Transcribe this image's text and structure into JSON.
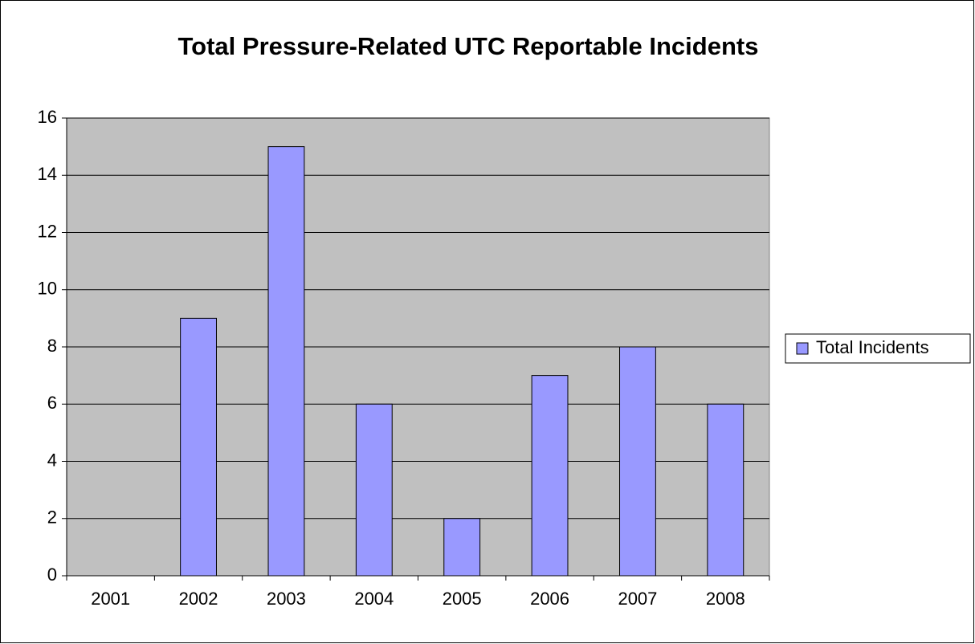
{
  "chart_data": {
    "type": "bar",
    "title": "Total Pressure-Related UTC Reportable Incidents",
    "categories": [
      "2001",
      "2002",
      "2003",
      "2004",
      "2005",
      "2006",
      "2007",
      "2008"
    ],
    "series": [
      {
        "name": "Total Incidents",
        "color": "#9999ff",
        "values": [
          0,
          9,
          15,
          6,
          2,
          7,
          8,
          6
        ]
      }
    ],
    "ylim": [
      0,
      16
    ],
    "yticks": [
      0,
      2,
      4,
      6,
      8,
      10,
      12,
      14,
      16
    ],
    "grid": true,
    "legend": "right"
  }
}
